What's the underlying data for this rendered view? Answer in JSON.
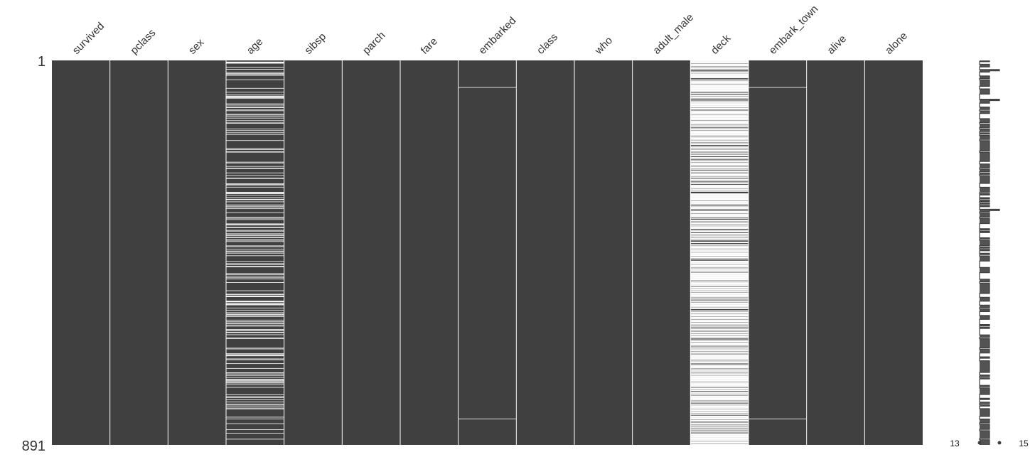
{
  "chart_data": {
    "type": "heatmap",
    "title": "",
    "n_rows": 891,
    "row_labels": {
      "first": "1",
      "last": "891"
    },
    "columns": [
      {
        "name": "survived",
        "missing": 0
      },
      {
        "name": "pclass",
        "missing": 0
      },
      {
        "name": "sex",
        "missing": 0
      },
      {
        "name": "age",
        "missing": 177
      },
      {
        "name": "sibsp",
        "missing": 0
      },
      {
        "name": "parch",
        "missing": 0
      },
      {
        "name": "fare",
        "missing": 0
      },
      {
        "name": "embarked",
        "missing": 2,
        "missing_rows": [
          62,
          830
        ]
      },
      {
        "name": "class",
        "missing": 0
      },
      {
        "name": "who",
        "missing": 0
      },
      {
        "name": "adult_male",
        "missing": 0
      },
      {
        "name": "deck",
        "missing": 688
      },
      {
        "name": "embark_town",
        "missing": 2,
        "missing_rows": [
          62,
          830
        ]
      },
      {
        "name": "alive",
        "missing": 0
      },
      {
        "name": "alone",
        "missing": 0
      }
    ],
    "sparkline": {
      "min_label": "13",
      "max_label": "15",
      "range": [
        13,
        15
      ]
    },
    "colors": {
      "present": "#404040",
      "missing": "#ffffff"
    }
  }
}
